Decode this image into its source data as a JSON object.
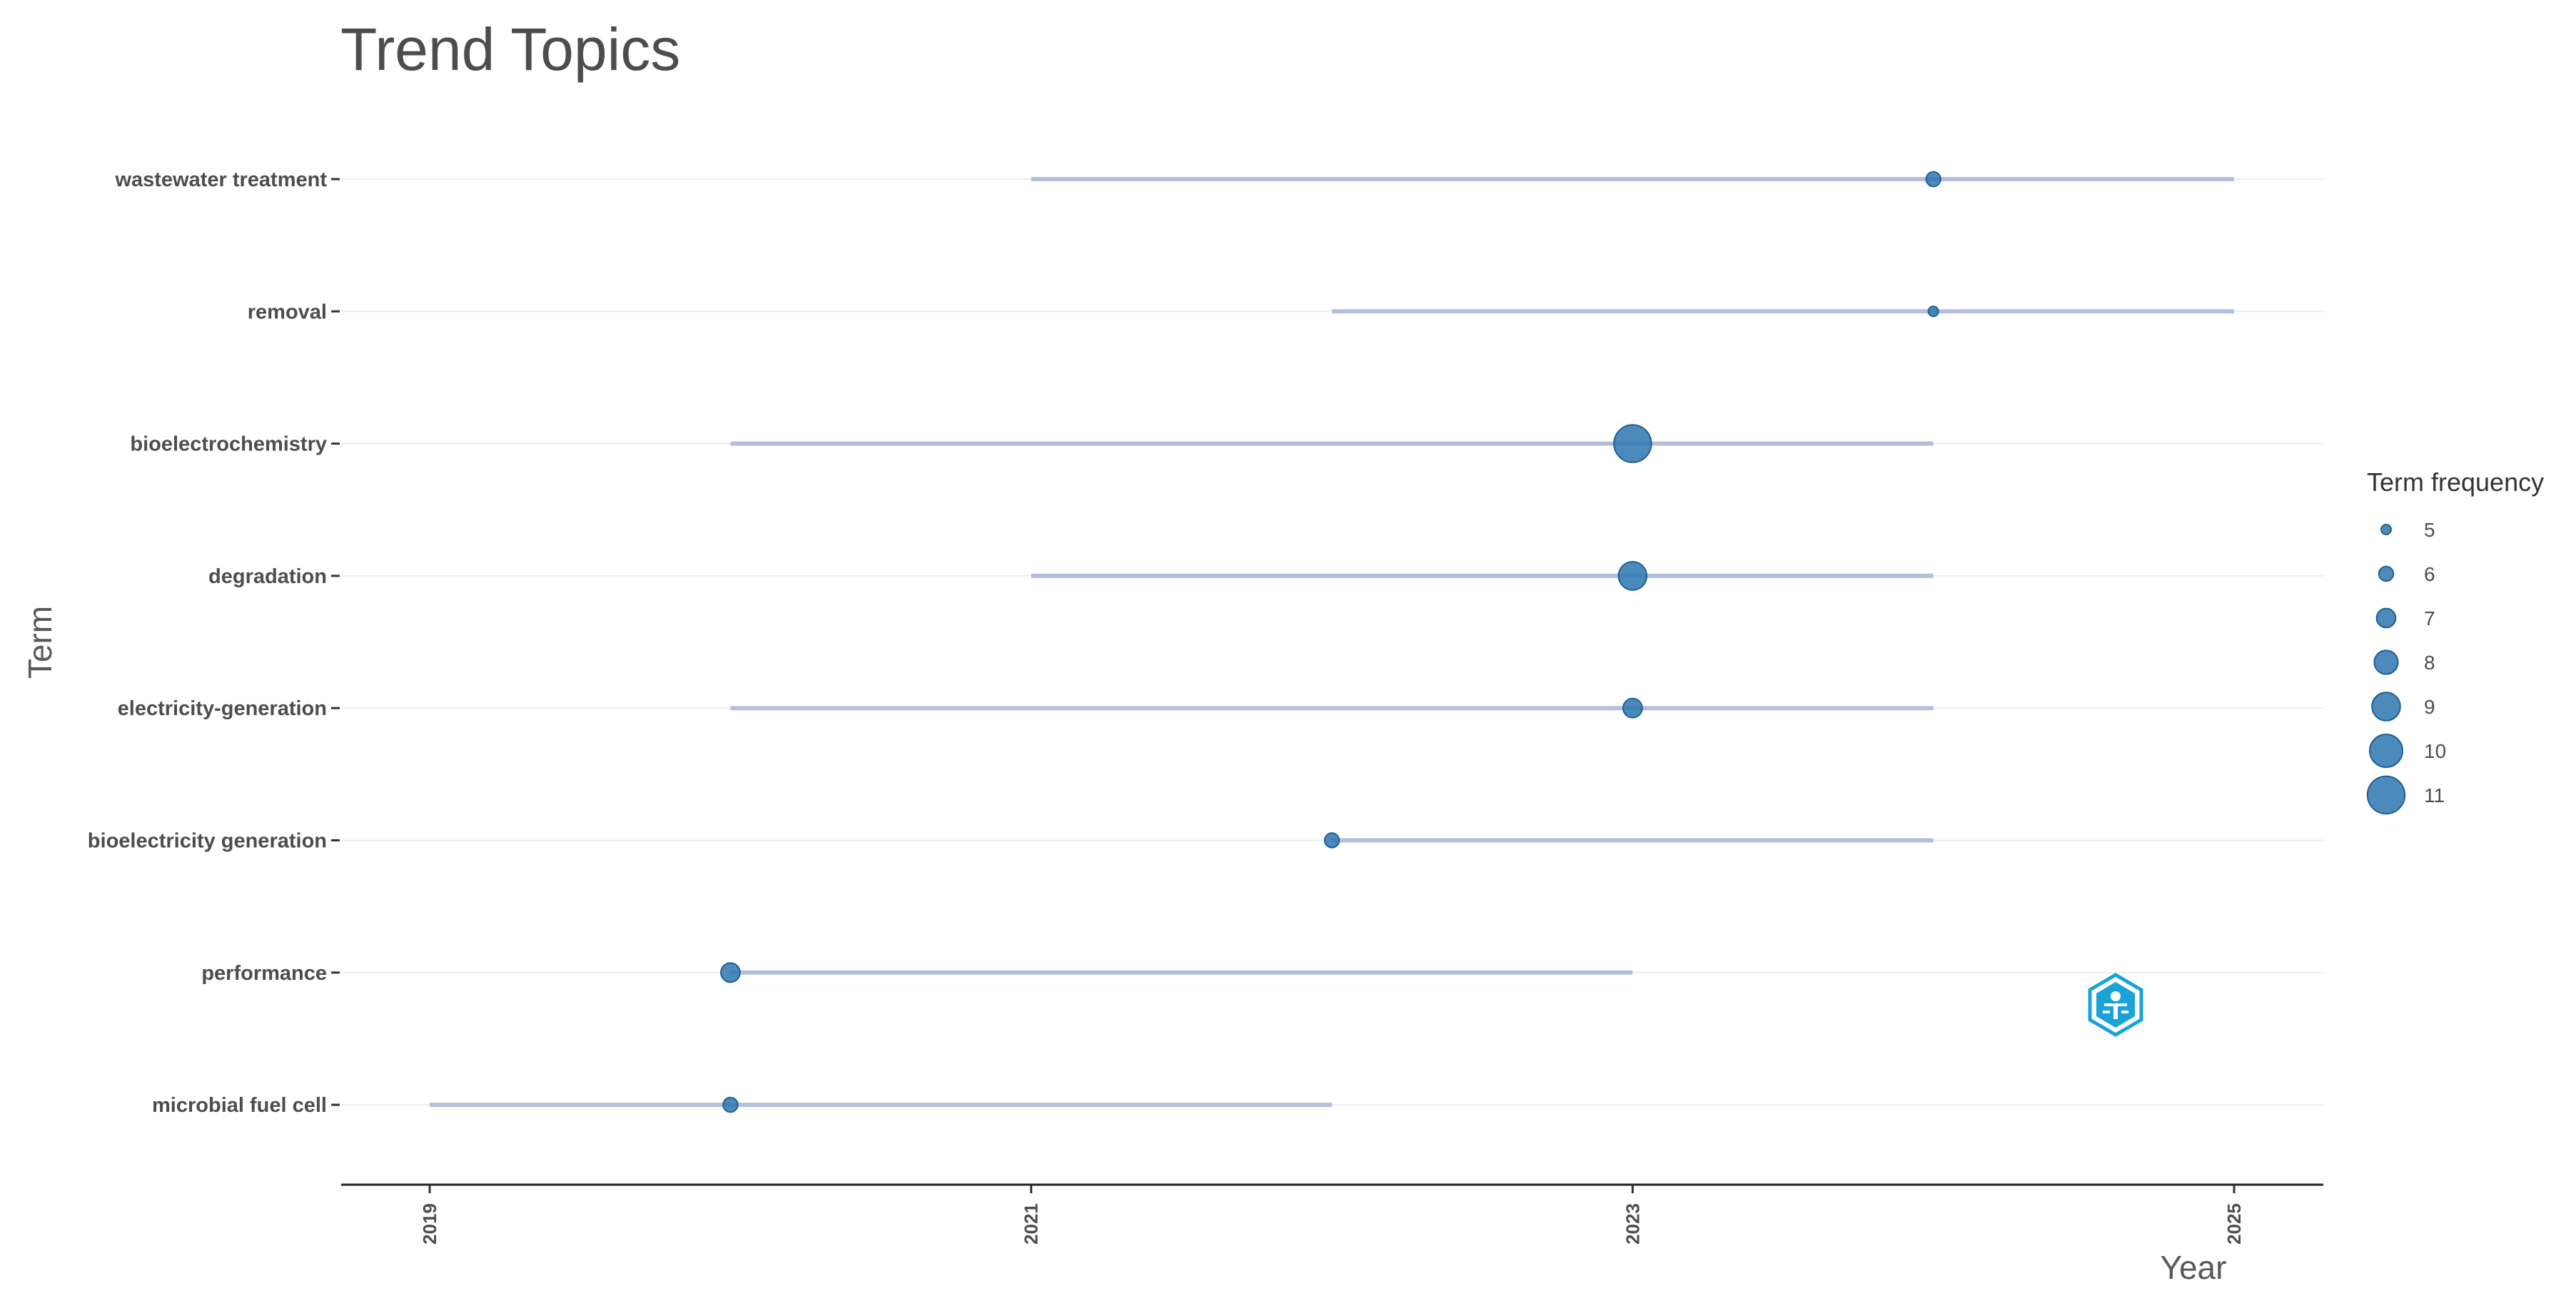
{
  "chart_data": {
    "type": "scatter",
    "title": "Trend Topics",
    "xlabel": "Year",
    "ylabel": "Term",
    "xlim": [
      2018.7,
      2025.3
    ],
    "x_ticks": [
      "2019",
      "2021",
      "2023",
      "2025"
    ],
    "grid": "horizontal",
    "legend_placement": "right",
    "legend_title": "Term frequency",
    "legend_sizes": [
      5,
      6,
      7,
      8,
      9,
      10,
      11
    ],
    "colors": {
      "point": "#2e75b0",
      "segment": "#b3bfdc",
      "axis": "#222222",
      "grid": "#ededed"
    },
    "terms": [
      {
        "term": "wastewater treatment",
        "q1": 2021,
        "median": 2024,
        "q3": 2025,
        "freq": 6
      },
      {
        "term": "removal",
        "q1": 2022,
        "median": 2024,
        "q3": 2025,
        "freq": 5
      },
      {
        "term": "bioelectrochemistry",
        "q1": 2020,
        "median": 2023,
        "q3": 2024,
        "freq": 11
      },
      {
        "term": "degradation",
        "q1": 2021,
        "median": 2023,
        "q3": 2024,
        "freq": 9
      },
      {
        "term": "electricity-generation",
        "q1": 2020,
        "median": 2023,
        "q3": 2024,
        "freq": 7
      },
      {
        "term": "bioelectricity generation",
        "q1": 2022,
        "median": 2022,
        "q3": 2024,
        "freq": 6
      },
      {
        "term": "performance",
        "q1": 2020,
        "median": 2020,
        "q3": 2023,
        "freq": 7
      },
      {
        "term": "microbial fuel cell",
        "q1": 2019,
        "median": 2020,
        "q3": 2022,
        "freq": 6
      }
    ]
  }
}
